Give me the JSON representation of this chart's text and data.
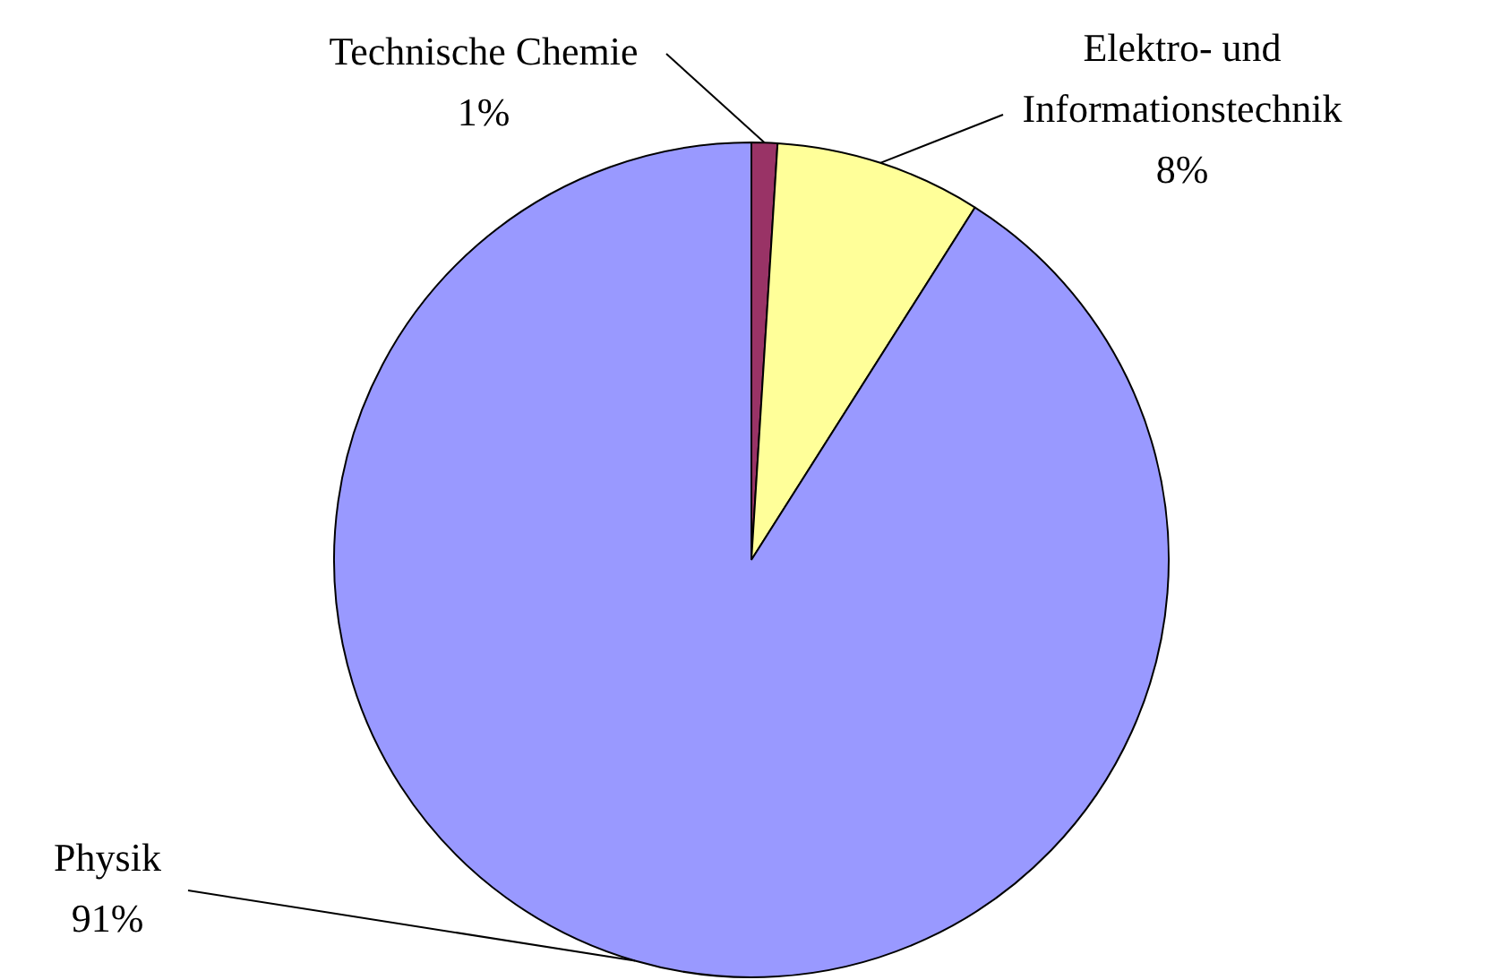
{
  "chart_data": {
    "type": "pie",
    "categories": [
      "Technische Chemie",
      "Elektro- und Informationstechnik",
      "Physik"
    ],
    "values": [
      1,
      8,
      91
    ],
    "value_labels": [
      "1%",
      "8%",
      "91%"
    ],
    "colors": [
      "#993366",
      "#ffff99",
      "#9999ff"
    ],
    "legend": false
  }
}
